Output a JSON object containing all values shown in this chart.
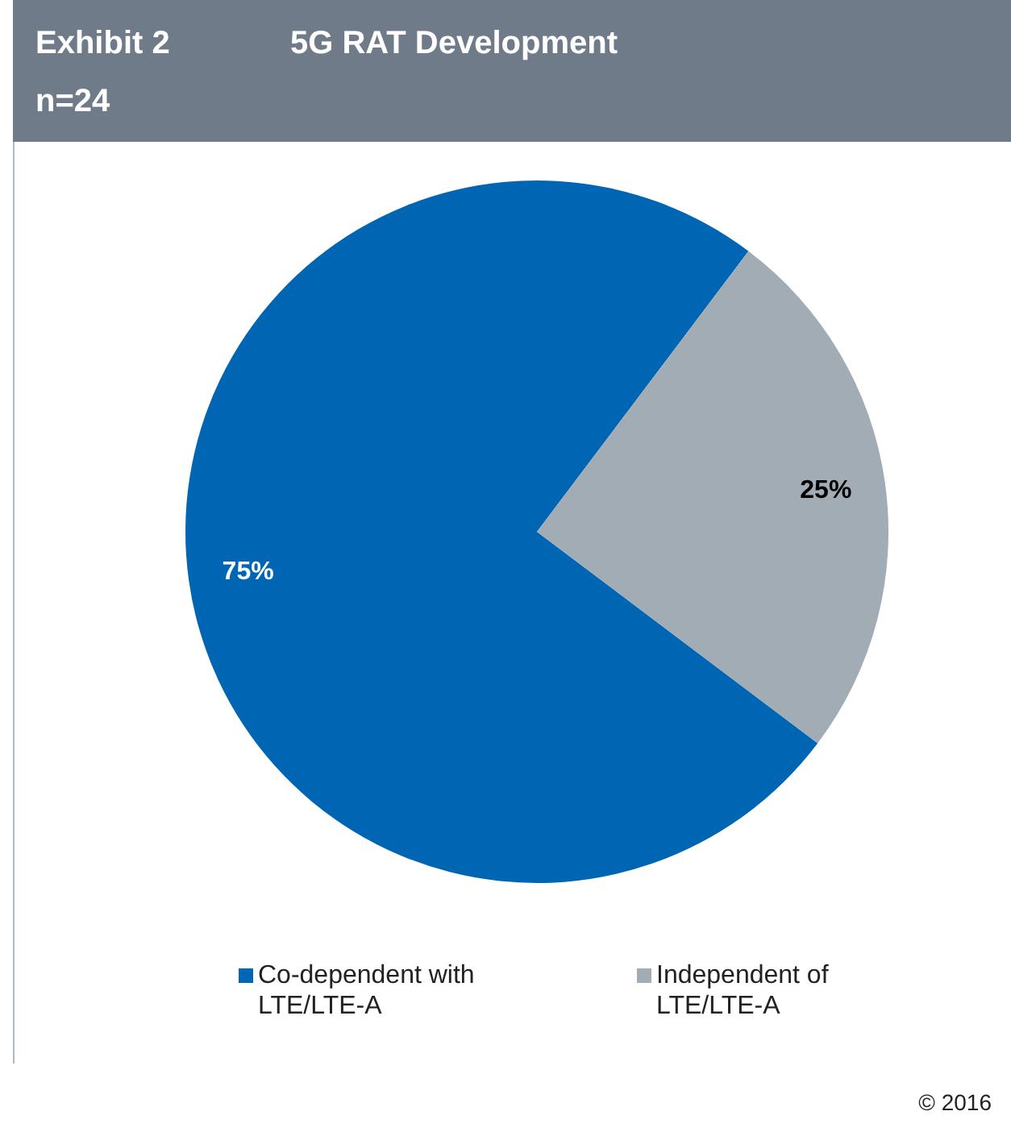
{
  "chart_data": {
    "type": "pie",
    "title": "5G RAT Development",
    "subtitle": "n=24",
    "annotations": [
      "Exhibit 2",
      "© 2016"
    ],
    "categories": [
      "Co-dependent with LTE/LTE-A",
      "Independent of LTE/LTE-A"
    ],
    "values": [
      75,
      25
    ],
    "colors": [
      "#0066b3",
      "#a2acb4"
    ],
    "value_labels": [
      "75%",
      "25%"
    ],
    "legend": "bottom"
  }
}
